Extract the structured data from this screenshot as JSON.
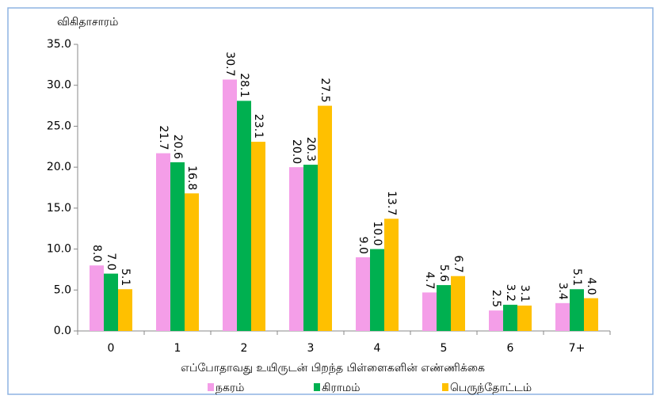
{
  "chart_data": {
    "type": "bar",
    "ylabel": "விகிதாசாரம்",
    "xlabel": "எப்போதாவது உயிருடன் பிறந்த பிள்ளைகளின் எண்ணிக்கை",
    "categories": [
      "0",
      "1",
      "2",
      "3",
      "4",
      "5",
      "6",
      "7+"
    ],
    "series": [
      {
        "name": "நகரம்",
        "color": "#f49ee8",
        "values": [
          8.0,
          21.7,
          30.7,
          20.0,
          9.0,
          4.7,
          2.5,
          3.4
        ],
        "value_labels": [
          "8.0",
          "21.7",
          "30.7",
          "20.0",
          "9.0",
          "4.7",
          "2.5",
          "3.4"
        ]
      },
      {
        "name": "கிராமம்",
        "color": "#00b050",
        "values": [
          7.0,
          20.6,
          28.1,
          20.3,
          10.0,
          5.6,
          3.2,
          5.1
        ],
        "value_labels": [
          "7.0",
          "20.6",
          "28.1",
          "20.3",
          "10.0",
          "5.6",
          "3.2",
          "5.1"
        ]
      },
      {
        "name": "பெருந்தோட்டம்",
        "color": "#ffc000",
        "values": [
          5.1,
          16.8,
          23.1,
          27.5,
          13.7,
          6.7,
          3.1,
          4.0
        ],
        "value_labels": [
          "5.1",
          "16.8",
          "23.1",
          "27.5",
          "13.7",
          "6.7",
          "3.1",
          "4.0"
        ]
      }
    ],
    "ylim": [
      0,
      35
    ],
    "yticks": [
      {
        "value": 0,
        "label": "0.0"
      },
      {
        "value": 5,
        "label": "5.0"
      },
      {
        "value": 10,
        "label": "10.0"
      },
      {
        "value": 15,
        "label": "15.0"
      },
      {
        "value": 20,
        "label": "20.0"
      },
      {
        "value": 25,
        "label": "25.0"
      },
      {
        "value": 30,
        "label": "30.0"
      },
      {
        "value": 35,
        "label": "35.0"
      }
    ],
    "legend": "bottom"
  }
}
